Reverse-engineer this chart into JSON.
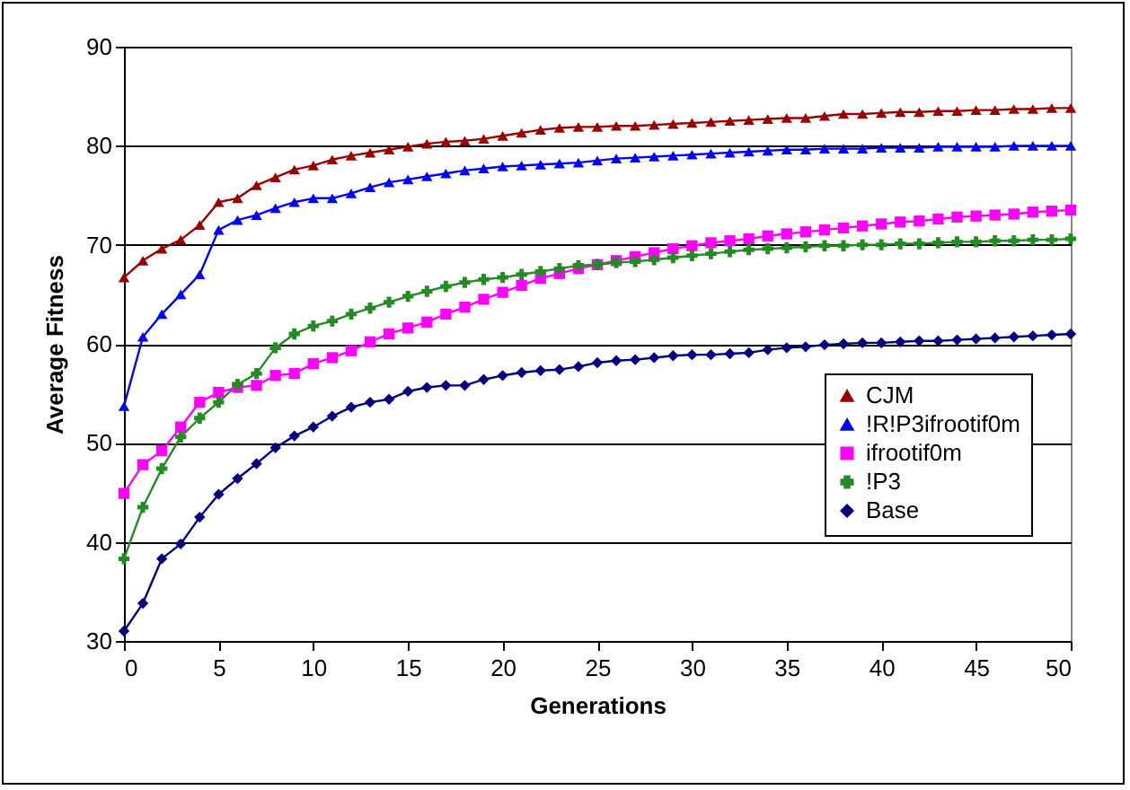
{
  "chart_data": {
    "type": "line",
    "xlabel": "Generations",
    "ylabel": "Average Fitness",
    "x": [
      0,
      1,
      2,
      3,
      4,
      5,
      6,
      7,
      8,
      9,
      10,
      11,
      12,
      13,
      14,
      15,
      16,
      17,
      18,
      19,
      20,
      21,
      22,
      23,
      24,
      25,
      26,
      27,
      28,
      29,
      30,
      31,
      32,
      33,
      34,
      35,
      36,
      37,
      38,
      39,
      40,
      41,
      42,
      43,
      44,
      45,
      46,
      47,
      48,
      49,
      50
    ],
    "series": [
      {
        "name": "CJM",
        "color": "#990000",
        "marker": "triangle",
        "values": [
          66.7,
          68.4,
          69.6,
          70.5,
          72.0,
          74.3,
          74.7,
          76.0,
          76.8,
          77.6,
          78.0,
          78.6,
          79.0,
          79.3,
          79.6,
          79.9,
          80.2,
          80.4,
          80.5,
          80.7,
          81.0,
          81.3,
          81.6,
          81.8,
          81.9,
          81.9,
          82.0,
          82.0,
          82.1,
          82.2,
          82.3,
          82.4,
          82.5,
          82.6,
          82.7,
          82.8,
          82.8,
          83.0,
          83.2,
          83.2,
          83.3,
          83.4,
          83.4,
          83.5,
          83.5,
          83.6,
          83.6,
          83.7,
          83.7,
          83.8,
          83.8
        ]
      },
      {
        "name": "!R!P3ifrootif0m",
        "color": "#0000ff",
        "marker": "triangle",
        "values": [
          53.7,
          60.7,
          63.0,
          65.0,
          67.0,
          71.5,
          72.5,
          73.0,
          73.7,
          74.3,
          74.7,
          74.7,
          75.2,
          75.8,
          76.3,
          76.6,
          76.9,
          77.2,
          77.5,
          77.7,
          77.9,
          78.0,
          78.1,
          78.2,
          78.3,
          78.5,
          78.7,
          78.8,
          78.9,
          79.0,
          79.1,
          79.2,
          79.3,
          79.4,
          79.5,
          79.6,
          79.6,
          79.7,
          79.7,
          79.7,
          79.8,
          79.8,
          79.8,
          79.9,
          79.9,
          79.9,
          79.9,
          80.0,
          80.0,
          80.0,
          80.0
        ]
      },
      {
        "name": "ifrootif0m",
        "color": "#ff00ff",
        "marker": "square",
        "values": [
          44.9,
          47.8,
          49.2,
          51.6,
          54.1,
          55.1,
          55.6,
          55.8,
          56.8,
          57.0,
          58.0,
          58.6,
          59.3,
          60.2,
          61.0,
          61.6,
          62.2,
          63.0,
          63.7,
          64.5,
          65.2,
          65.9,
          66.6,
          67.1,
          67.6,
          68.0,
          68.4,
          68.8,
          69.2,
          69.6,
          69.9,
          70.2,
          70.4,
          70.6,
          70.9,
          71.1,
          71.3,
          71.5,
          71.7,
          71.9,
          72.1,
          72.3,
          72.4,
          72.6,
          72.8,
          72.9,
          73.0,
          73.1,
          73.3,
          73.4,
          73.5
        ]
      },
      {
        "name": "!P3",
        "color": "#228b22",
        "marker": "cross",
        "values": [
          38.3,
          43.5,
          47.4,
          50.6,
          52.5,
          54.1,
          55.9,
          57.0,
          59.6,
          61.0,
          61.8,
          62.3,
          63.0,
          63.6,
          64.2,
          64.8,
          65.3,
          65.8,
          66.2,
          66.5,
          66.7,
          67.0,
          67.3,
          67.6,
          67.9,
          68.0,
          68.2,
          68.3,
          68.5,
          68.7,
          68.9,
          69.1,
          69.3,
          69.5,
          69.6,
          69.7,
          69.8,
          69.9,
          69.9,
          70.0,
          70.0,
          70.1,
          70.1,
          70.2,
          70.3,
          70.3,
          70.4,
          70.4,
          70.5,
          70.5,
          70.6
        ]
      },
      {
        "name": "Base",
        "color": "#000080",
        "marker": "diamond",
        "values": [
          31.0,
          33.8,
          38.3,
          39.8,
          42.5,
          44.8,
          46.4,
          47.9,
          49.5,
          50.7,
          51.6,
          52.7,
          53.6,
          54.1,
          54.4,
          55.2,
          55.6,
          55.8,
          55.8,
          56.4,
          56.8,
          57.1,
          57.3,
          57.4,
          57.7,
          58.1,
          58.3,
          58.4,
          58.6,
          58.8,
          58.9,
          58.9,
          59.0,
          59.1,
          59.4,
          59.6,
          59.7,
          59.9,
          60.0,
          60.1,
          60.1,
          60.2,
          60.3,
          60.3,
          60.4,
          60.5,
          60.6,
          60.7,
          60.8,
          60.9,
          61.0
        ]
      }
    ],
    "xlim": [
      0,
      50
    ],
    "xticks": [
      0,
      5,
      10,
      15,
      20,
      25,
      30,
      35,
      40,
      45,
      50
    ],
    "ylim": [
      30,
      90
    ],
    "yticks": [
      30,
      40,
      50,
      60,
      70,
      80,
      90
    ],
    "grid": "y",
    "legend": "bottom right"
  }
}
